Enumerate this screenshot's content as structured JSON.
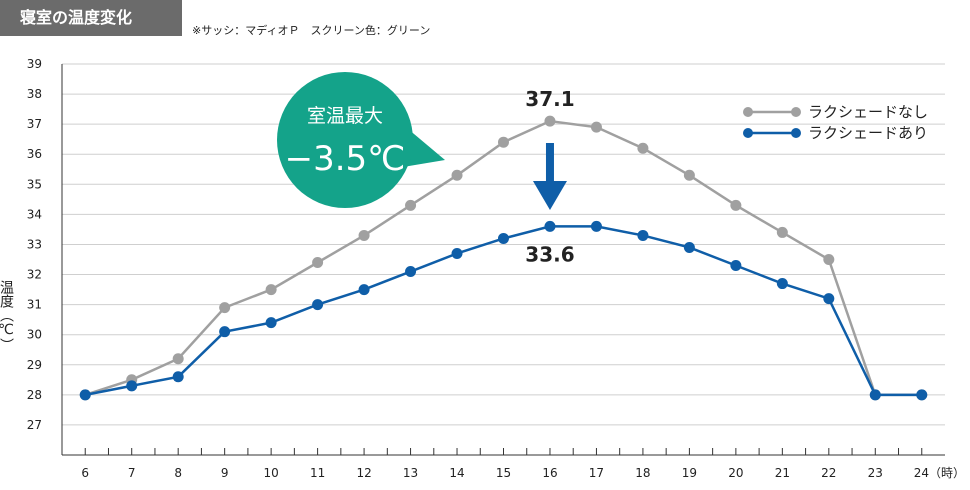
{
  "header": {
    "title": "寝室の温度変化",
    "note": "※サッシ：マディオＰ　スクリーン色：グリーン"
  },
  "colors": {
    "gray_series": "#a0a0a0",
    "blue_series": "#0f5ea8",
    "callout": "#14a38a",
    "arrow": "#0f5ea8"
  },
  "chart_data": {
    "type": "line",
    "x": [
      6,
      7,
      8,
      9,
      10,
      11,
      12,
      13,
      14,
      15,
      16,
      17,
      18,
      19,
      20,
      21,
      22,
      23,
      24
    ],
    "x_tick_labels": [
      "6",
      "7",
      "8",
      "9",
      "10",
      "11",
      "12",
      "13",
      "14",
      "15",
      "16",
      "17",
      "18",
      "19",
      "20",
      "21",
      "22",
      "23",
      "24（時）"
    ],
    "ylim": [
      27,
      39
    ],
    "y_ticks": [
      27,
      28,
      29,
      30,
      31,
      32,
      33,
      34,
      35,
      36,
      37,
      38,
      39
    ],
    "ylabel": "温度（℃）",
    "grid": true,
    "legend_position": "top-right",
    "series": [
      {
        "name": "ラクシェードなし",
        "color": "#a0a0a0",
        "values": [
          28.0,
          28.5,
          29.2,
          30.9,
          31.5,
          32.4,
          33.3,
          34.3,
          35.3,
          36.4,
          37.1,
          36.9,
          36.2,
          35.3,
          34.3,
          33.4,
          32.5,
          28.0,
          28.0
        ]
      },
      {
        "name": "ラクシェードあり",
        "color": "#0f5ea8",
        "values": [
          28.0,
          28.3,
          28.6,
          30.1,
          30.4,
          31.0,
          31.5,
          32.1,
          32.7,
          33.2,
          33.6,
          33.6,
          33.3,
          32.9,
          32.3,
          31.7,
          31.2,
          28.0,
          28.0
        ]
      }
    ],
    "annotations": {
      "peak_top": "37.1",
      "peak_bottom": "33.6",
      "callout_title": "室温最大",
      "callout_value": "−3.5℃"
    }
  }
}
